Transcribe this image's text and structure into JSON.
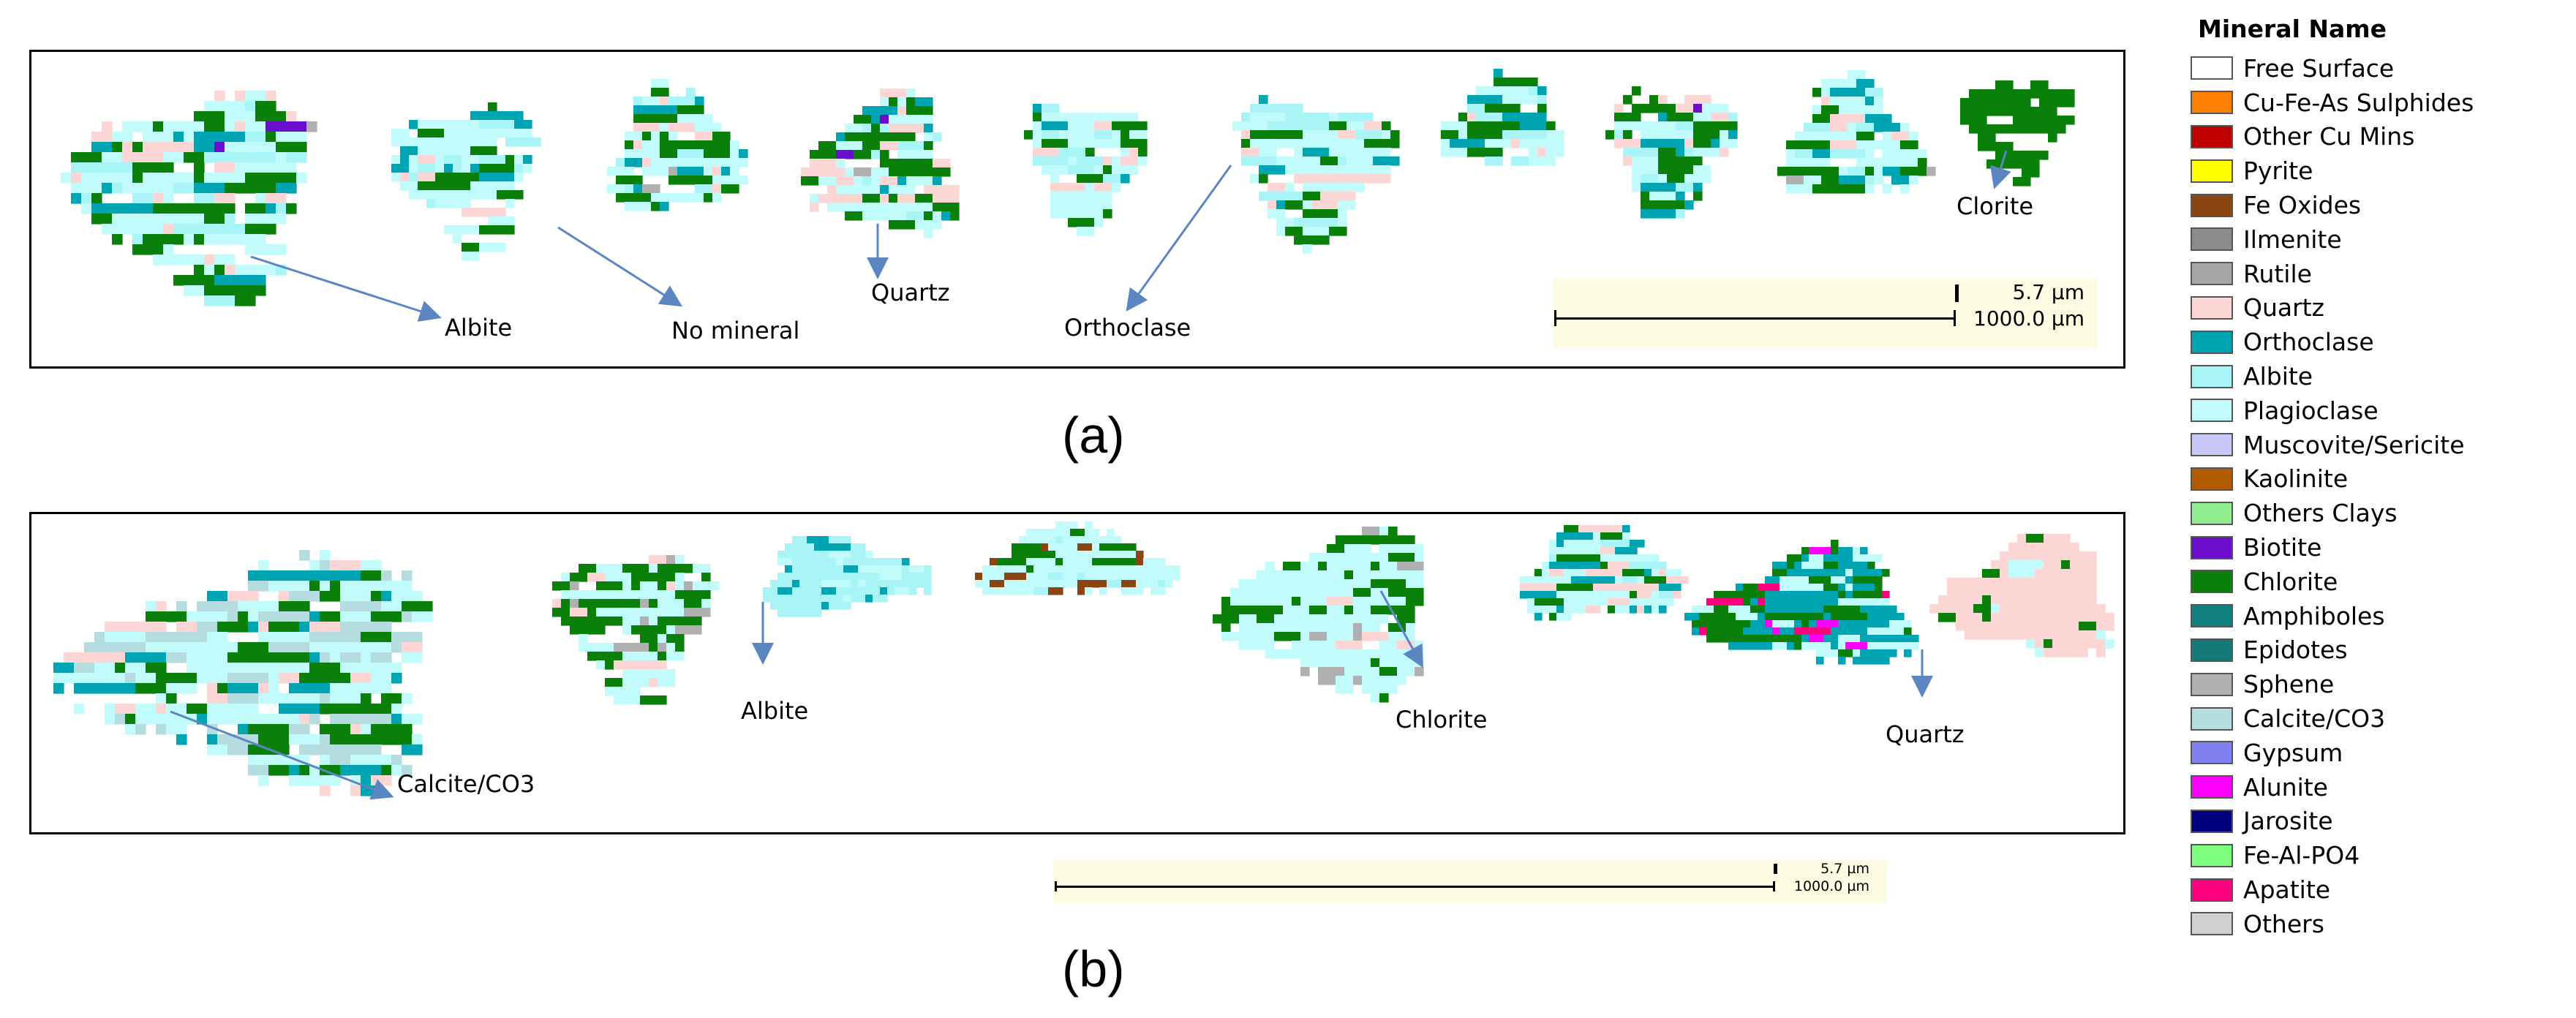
{
  "figure": {
    "panel_a_label": "(a)",
    "panel_b_label": "(b)"
  },
  "panel_a": {
    "annotations": [
      "Albite",
      "No mineral",
      "Quartz",
      "Orthoclase",
      "Clorite"
    ],
    "scale": {
      "top_text": "5.7 µm",
      "bottom_text": "1000.0 µm"
    }
  },
  "panel_b": {
    "annotations": [
      "Albite",
      "Chlorite",
      "Calcite/CO3",
      "Quartz"
    ],
    "scale": {
      "top_text": "5.7 µm",
      "bottom_text": "1000.0 µm"
    }
  },
  "legend": {
    "title": "Mineral Name",
    "items": [
      {
        "label": "Free Surface",
        "color": "#ffffff"
      },
      {
        "label": "Cu-Fe-As Sulphides",
        "color": "#ff7f00"
      },
      {
        "label": "Other Cu Mins",
        "color": "#c00000"
      },
      {
        "label": "Pyrite",
        "color": "#ffff00"
      },
      {
        "label": "Fe Oxides",
        "color": "#8b4513"
      },
      {
        "label": "Ilmenite",
        "color": "#8c8c8c"
      },
      {
        "label": "Rutile",
        "color": "#a6a6a6"
      },
      {
        "label": "Quartz",
        "color": "#fcd5d5"
      },
      {
        "label": "Orthoclase",
        "color": "#00a5b4"
      },
      {
        "label": "Albite",
        "color": "#a8f4f6"
      },
      {
        "label": "Plagioclase",
        "color": "#c2fbfb"
      },
      {
        "label": "Muscovite/Sericite",
        "color": "#c6c6f8"
      },
      {
        "label": "Kaolinite",
        "color": "#b35900"
      },
      {
        "label": "Others Clays",
        "color": "#90ee90"
      },
      {
        "label": "Biotite",
        "color": "#6a0dcc"
      },
      {
        "label": "Chlorite",
        "color": "#0a7f0a"
      },
      {
        "label": "Amphiboles",
        "color": "#0f7f7f"
      },
      {
        "label": "Epidotes",
        "color": "#137a78"
      },
      {
        "label": "Sphene",
        "color": "#b0b0b0"
      },
      {
        "label": "Calcite/CO3",
        "color": "#b5dcde"
      },
      {
        "label": "Gypsum",
        "color": "#8080f0"
      },
      {
        "label": "Alunite",
        "color": "#ff00ff"
      },
      {
        "label": "Jarosite",
        "color": "#000080"
      },
      {
        "label": "Fe-Al-PO4",
        "color": "#7fff7f"
      },
      {
        "label": "Apatite",
        "color": "#ff007f"
      },
      {
        "label": "Others",
        "color": "#d0d0d0"
      }
    ]
  }
}
